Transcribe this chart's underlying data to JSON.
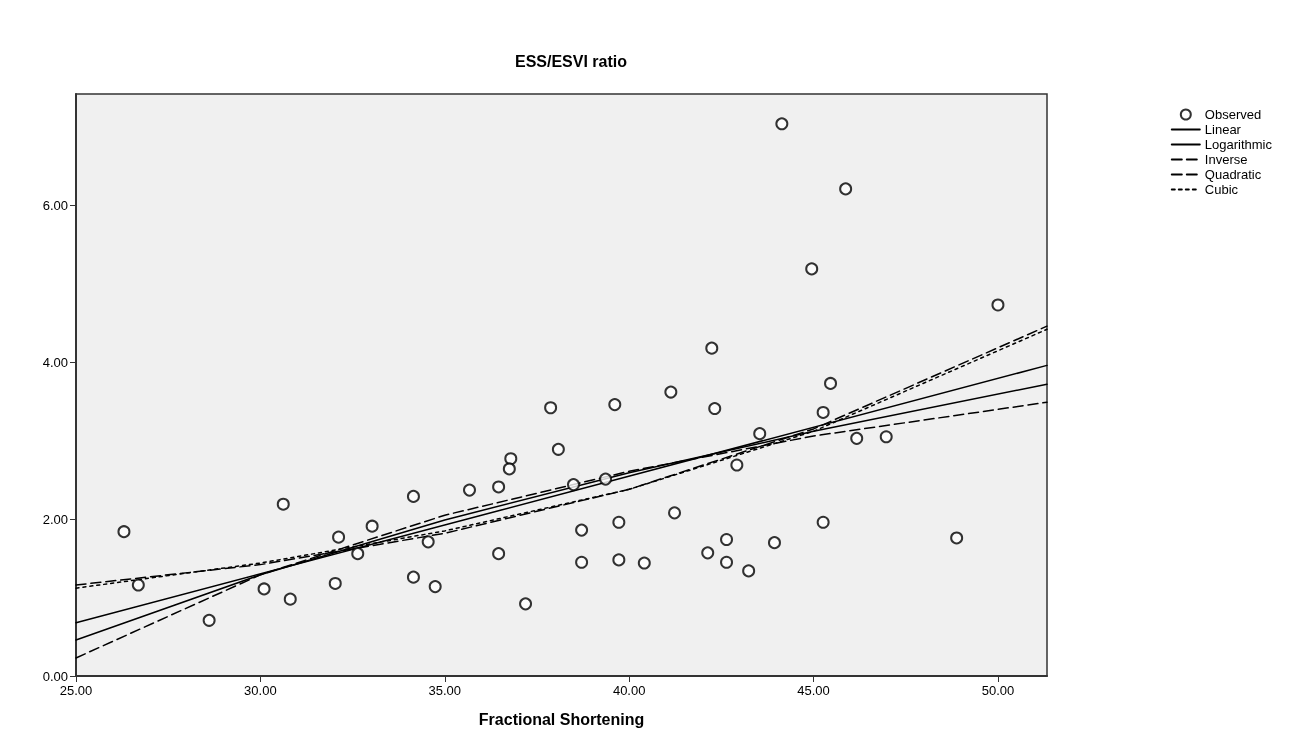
{
  "chart_data": {
    "type": "scatter",
    "title": "ESS/ESVI ratio",
    "xlabel": "Fractional Shortening",
    "xlim": [
      25,
      51.33
    ],
    "xticks": [
      {
        "value": 25,
        "label": "25.00"
      },
      {
        "value": 30,
        "label": "30.00"
      },
      {
        "value": 35,
        "label": "35.00"
      },
      {
        "value": 40,
        "label": "40.00"
      },
      {
        "value": 45,
        "label": "45.00"
      },
      {
        "value": 50,
        "label": "50.00"
      }
    ],
    "ylim": [
      0,
      7.42
    ],
    "yticks": [
      {
        "value": 0,
        "label": "0.00"
      },
      {
        "value": 2,
        "label": "2.00"
      },
      {
        "value": 4,
        "label": "4.00"
      },
      {
        "value": 6,
        "label": "6.00"
      }
    ],
    "grid": false,
    "legend": "top right",
    "series": [
      {
        "name": "Observed",
        "marker": "circle",
        "color": "#000000",
        "x": [
          26.3,
          26.69,
          28.61,
          30.62,
          30.1,
          30.81,
          32.12,
          32.03,
          32.64,
          33.03,
          34.15,
          34.15,
          34.55,
          34.74,
          35.67,
          36.46,
          36.46,
          36.79,
          36.75,
          37.19,
          37.87,
          38.08,
          38.49,
          39.36,
          38.71,
          38.71,
          39.61,
          39.72,
          39.72,
          40.41,
          41.13,
          41.23,
          42.24,
          42.32,
          42.13,
          42.64,
          42.64,
          42.92,
          43.24,
          43.54,
          43.94,
          44.14,
          44.95,
          45.26,
          45.26,
          45.46,
          45.87,
          46.17,
          46.97,
          48.88,
          50.0
        ],
        "values": [
          1.84,
          1.16,
          0.71,
          2.19,
          1.11,
          0.98,
          1.77,
          1.18,
          1.56,
          1.91,
          2.29,
          1.26,
          1.71,
          1.14,
          2.37,
          2.41,
          1.56,
          2.77,
          2.64,
          0.92,
          3.42,
          2.89,
          2.44,
          2.51,
          1.86,
          1.45,
          3.46,
          1.96,
          1.48,
          1.44,
          3.62,
          2.08,
          4.18,
          3.41,
          1.57,
          1.74,
          1.45,
          2.69,
          1.34,
          3.09,
          1.7,
          7.04,
          5.19,
          3.36,
          1.96,
          3.73,
          6.21,
          3.03,
          3.05,
          1.76,
          4.73
        ]
      },
      {
        "name": "Linear",
        "type": "line",
        "marker": "none",
        "line_style": "solid",
        "color": "#000000",
        "x": [
          25,
          51.33
        ],
        "values": [
          0.68,
          3.96
        ]
      },
      {
        "name": "Logarithmic",
        "type": "line",
        "marker": "none",
        "line_style": "solid",
        "color": "#000000",
        "x": [
          25,
          30,
          35,
          40,
          45,
          51.33
        ],
        "values": [
          0.46,
          1.29,
          1.99,
          2.59,
          3.12,
          3.72
        ]
      },
      {
        "name": "Inverse",
        "type": "line",
        "marker": "none",
        "line_style": "dashed",
        "color": "#000000",
        "x": [
          25,
          30,
          35,
          40,
          45,
          51.33
        ],
        "values": [
          0.23,
          1.29,
          2.05,
          2.61,
          3.06,
          3.49
        ]
      },
      {
        "name": "Quadratic",
        "type": "line",
        "marker": "none",
        "line_style": "dashed",
        "color": "#000000",
        "x": [
          25,
          30,
          35,
          40,
          45,
          51.33
        ],
        "values": [
          1.16,
          1.42,
          1.82,
          2.38,
          3.15,
          4.46
        ]
      },
      {
        "name": "Cubic",
        "type": "line",
        "marker": "none",
        "line_style": "dotted",
        "color": "#000000",
        "x": [
          25,
          30,
          35,
          40,
          45,
          51.33
        ],
        "values": [
          1.12,
          1.44,
          1.85,
          2.38,
          3.12,
          4.42
        ]
      }
    ]
  }
}
